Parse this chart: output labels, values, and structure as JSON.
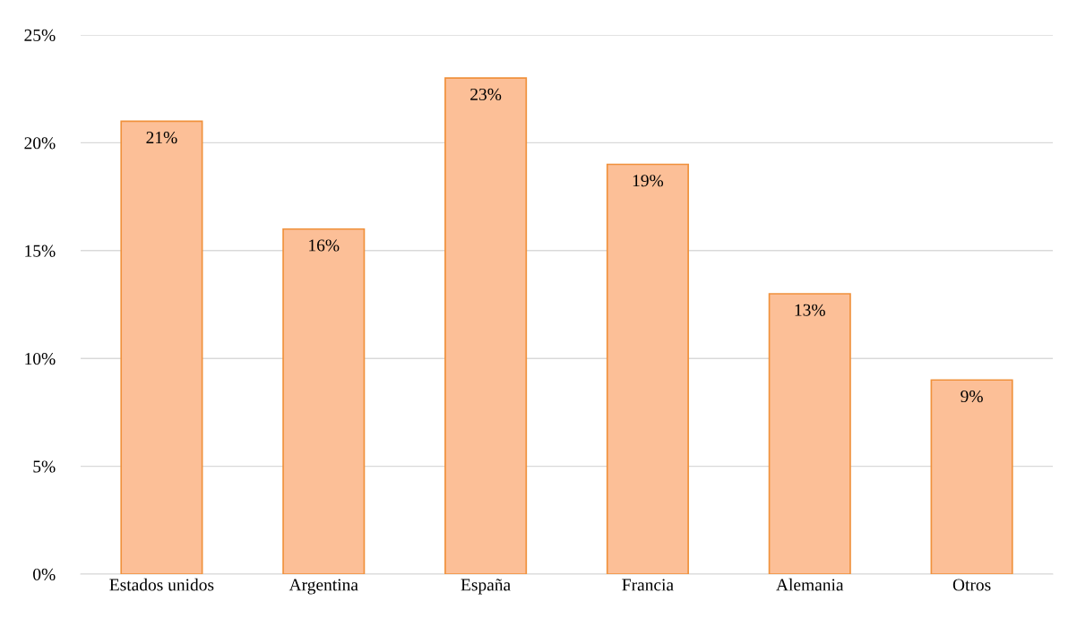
{
  "chart_data": {
    "type": "bar",
    "categories": [
      "Estados unidos",
      "Argentina",
      "España",
      "Francia",
      "Alemania",
      "Otros"
    ],
    "values": [
      21,
      16,
      23,
      19,
      13,
      9
    ],
    "value_labels": [
      "21%",
      "16%",
      "23%",
      "19%",
      "13%",
      "9%"
    ],
    "color": "#fcbf97",
    "ylim": [
      0,
      25
    ],
    "yticks": [
      {
        "value": 0,
        "label": "0%"
      },
      {
        "value": 5,
        "label": "5%"
      },
      {
        "value": 10,
        "label": "10%"
      },
      {
        "value": 15,
        "label": "15%"
      },
      {
        "value": 20,
        "label": "20%"
      },
      {
        "value": 25,
        "label": "25%"
      }
    ],
    "grid": "y",
    "legend": false
  }
}
